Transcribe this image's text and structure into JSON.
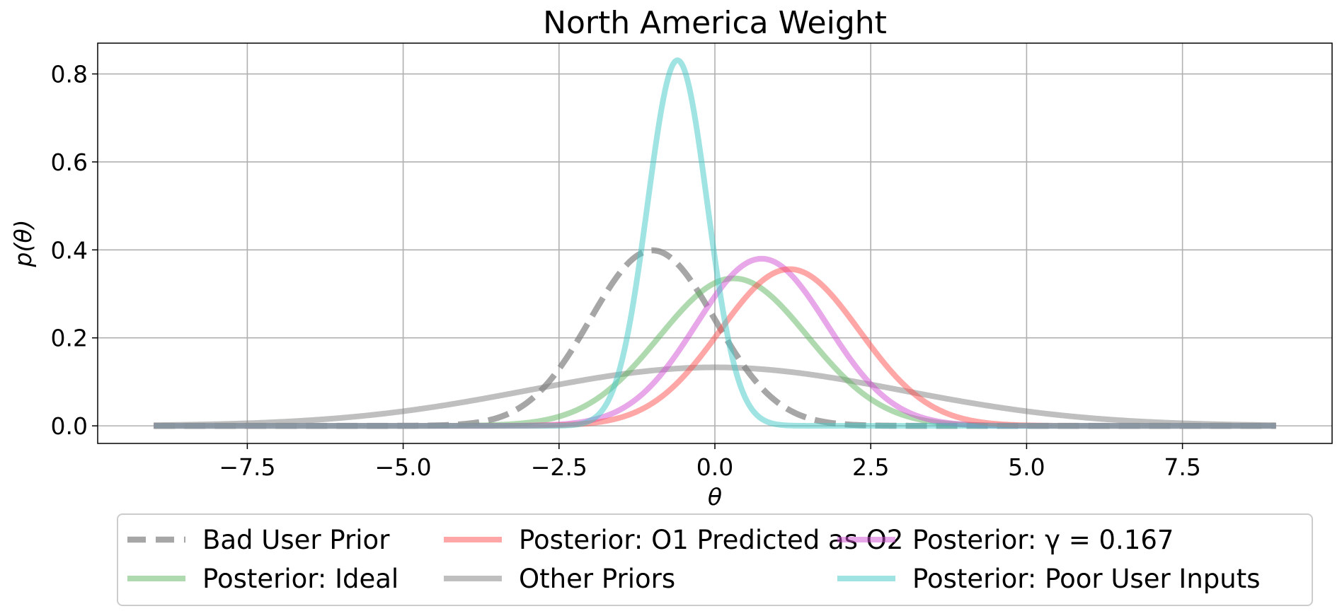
{
  "chart_data": {
    "type": "line",
    "title": "North America Weight",
    "xlabel": "θ",
    "ylabel": "p(θ)",
    "xlim": [
      -9.9,
      9.9
    ],
    "ylim": [
      -0.04,
      0.87
    ],
    "xticks": [
      -7.5,
      -5.0,
      -2.5,
      0.0,
      2.5,
      5.0,
      7.5
    ],
    "xtick_labels": [
      "−7.5",
      "−5.0",
      "−2.5",
      "0.0",
      "2.5",
      "5.0",
      "7.5"
    ],
    "yticks": [
      0.0,
      0.2,
      0.4,
      0.6,
      0.8
    ],
    "ytick_labels": [
      "0.0",
      "0.2",
      "0.4",
      "0.6",
      "0.8"
    ],
    "x_range": [
      -9.0,
      9.0
    ],
    "grid": true,
    "legend_position": "bottom",
    "series": [
      {
        "name": "Bad User Prior",
        "distribution": "normal",
        "mean": -1.0,
        "std": 1.0,
        "color": "#808080",
        "dashed": true
      },
      {
        "name": "Other Priors",
        "distribution": "normal",
        "mean": 0.0,
        "std": 3.0,
        "color": "#808080",
        "dashed": false
      },
      {
        "name": "Posterior: Ideal",
        "distribution": "normal",
        "mean": 0.3,
        "std": 1.19,
        "color": "#5fb55f",
        "dashed": false
      },
      {
        "name": "Posterior: γ = 0.167",
        "distribution": "normal",
        "mean": 0.75,
        "std": 1.05,
        "color": "#d24fd2",
        "dashed": false
      },
      {
        "name": "Posterior: O1 Predicted as O2",
        "distribution": "normal",
        "mean": 1.2,
        "std": 1.12,
        "color": "#ff4d4d",
        "dashed": false
      },
      {
        "name": "Posterior: Poor User Inputs",
        "distribution": "normal",
        "mean": -0.6,
        "std": 0.48,
        "color": "#40c8c8",
        "dashed": false
      }
    ],
    "legend_order": [
      0,
      2,
      4,
      1,
      3,
      5
    ]
  }
}
